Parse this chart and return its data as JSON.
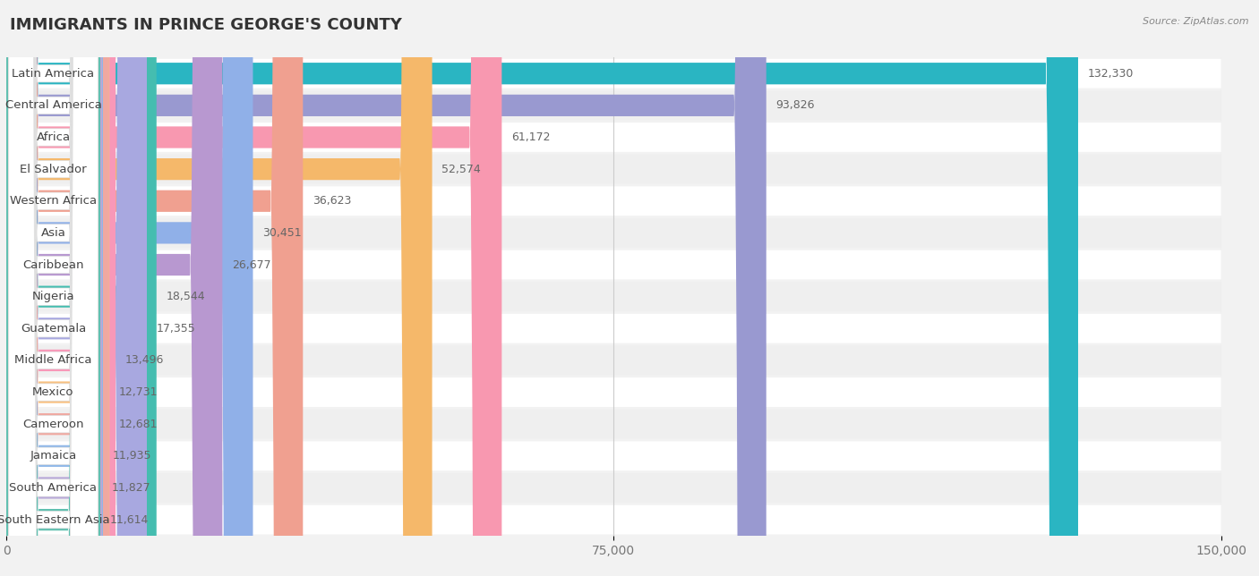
{
  "title": "IMMIGRANTS IN PRINCE GEORGE'S COUNTY",
  "source": "Source: ZipAtlas.com",
  "categories": [
    "Latin America",
    "Central America",
    "Africa",
    "El Salvador",
    "Western Africa",
    "Asia",
    "Caribbean",
    "Nigeria",
    "Guatemala",
    "Middle Africa",
    "Mexico",
    "Cameroon",
    "Jamaica",
    "South America",
    "South Eastern Asia"
  ],
  "values": [
    132330,
    93826,
    61172,
    52574,
    36623,
    30451,
    26677,
    18544,
    17355,
    13496,
    12731,
    12681,
    11935,
    11827,
    11614
  ],
  "bar_colors": [
    "#2ab5c2",
    "#9999d0",
    "#f898b0",
    "#f5b86a",
    "#f0a090",
    "#90b0e8",
    "#b898d0",
    "#45bdb0",
    "#a8a8e0",
    "#f898b8",
    "#f8c080",
    "#f0a8a0",
    "#90b8e8",
    "#b8a8d8",
    "#60c0b0"
  ],
  "label_circle_colors": [
    "#2ab5c2",
    "#9090c8",
    "#f070a0",
    "#f0a040",
    "#e88878",
    "#7898d8",
    "#a878c8",
    "#38a8a0",
    "#9898d8",
    "#f070a8",
    "#f0a858",
    "#e89090",
    "#78a8e0",
    "#a890c8",
    "#40b0a0"
  ],
  "xlim": [
    0,
    150000
  ],
  "xticks": [
    0,
    75000,
    150000
  ],
  "xticklabels": [
    "0",
    "75,000",
    "150,000"
  ],
  "background_color": "#f2f2f2",
  "row_colors": [
    "#ffffff",
    "#efefef"
  ],
  "title_fontsize": 13,
  "tick_fontsize": 10,
  "label_fontsize": 9.5,
  "value_fontsize": 9
}
